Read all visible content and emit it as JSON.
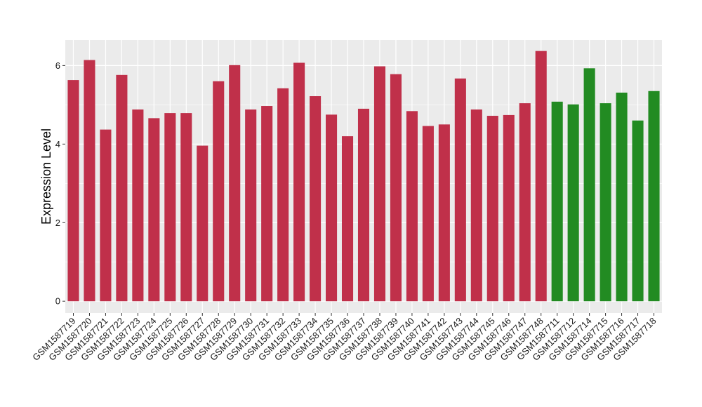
{
  "chart_data": {
    "type": "bar",
    "title": "",
    "xlabel": "",
    "ylabel": "Expression Level",
    "ylim": [
      -0.3,
      6.65
    ],
    "yticks": [
      0,
      2,
      4,
      6
    ],
    "grid": true,
    "panel_background": "#ebebeb",
    "grid_color": "#ffffff",
    "categories": [
      "GSM1587719",
      "GSM1587720",
      "GSM1587721",
      "GSM1587722",
      "GSM1587723",
      "GSM1587724",
      "GSM1587725",
      "GSM1587726",
      "GSM1587727",
      "GSM1587728",
      "GSM1587729",
      "GSM1587730",
      "GSM1587731",
      "GSM1587732",
      "GSM1587733",
      "GSM1587734",
      "GSM1587735",
      "GSM1587736",
      "GSM1587737",
      "GSM1587738",
      "GSM1587739",
      "GSM1587740",
      "GSM1587741",
      "GSM1587742",
      "GSM1587743",
      "GSM1587744",
      "GSM1587745",
      "GSM1587746",
      "GSM1587747",
      "GSM1587748",
      "GSM1587711",
      "GSM1587712",
      "GSM1587714",
      "GSM1587715",
      "GSM1587716",
      "GSM1587717",
      "GSM1587718"
    ],
    "values": [
      5.63,
      6.14,
      4.37,
      5.76,
      4.88,
      4.66,
      4.79,
      4.79,
      3.96,
      5.6,
      6.01,
      4.88,
      4.97,
      5.42,
      6.07,
      5.22,
      4.75,
      4.2,
      4.9,
      5.98,
      5.78,
      4.84,
      4.46,
      4.5,
      5.67,
      4.88,
      4.72,
      4.74,
      5.04,
      6.37,
      5.08,
      5.01,
      5.93,
      5.04,
      5.31,
      4.6,
      5.35
    ],
    "colors": [
      "#c0304a",
      "#c0304a",
      "#c0304a",
      "#c0304a",
      "#c0304a",
      "#c0304a",
      "#c0304a",
      "#c0304a",
      "#c0304a",
      "#c0304a",
      "#c0304a",
      "#c0304a",
      "#c0304a",
      "#c0304a",
      "#c0304a",
      "#c0304a",
      "#c0304a",
      "#c0304a",
      "#c0304a",
      "#c0304a",
      "#c0304a",
      "#c0304a",
      "#c0304a",
      "#c0304a",
      "#c0304a",
      "#c0304a",
      "#c0304a",
      "#c0304a",
      "#c0304a",
      "#c0304a",
      "#228b22",
      "#228b22",
      "#228b22",
      "#228b22",
      "#228b22",
      "#228b22",
      "#228b22"
    ]
  }
}
